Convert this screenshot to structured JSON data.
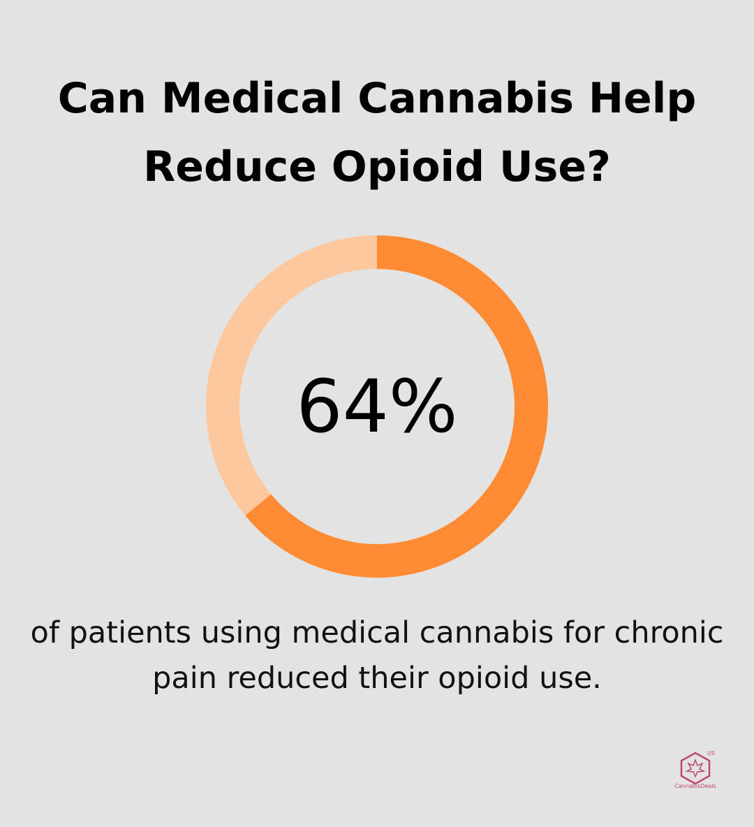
{
  "chart_data": {
    "type": "donut",
    "title": "Can Medical Cannabis Help Reduce Opioid Use?",
    "values": [
      64
    ],
    "value_labels": [
      "64%"
    ],
    "ylim": [
      0,
      100
    ],
    "color": "#ff8c35",
    "track_color": "#fec89e",
    "caption": "of patients using medical cannabis for chronic pain reduced their opioid use."
  },
  "logo": {
    "name": "CannabisDeals",
    "region": "US"
  }
}
